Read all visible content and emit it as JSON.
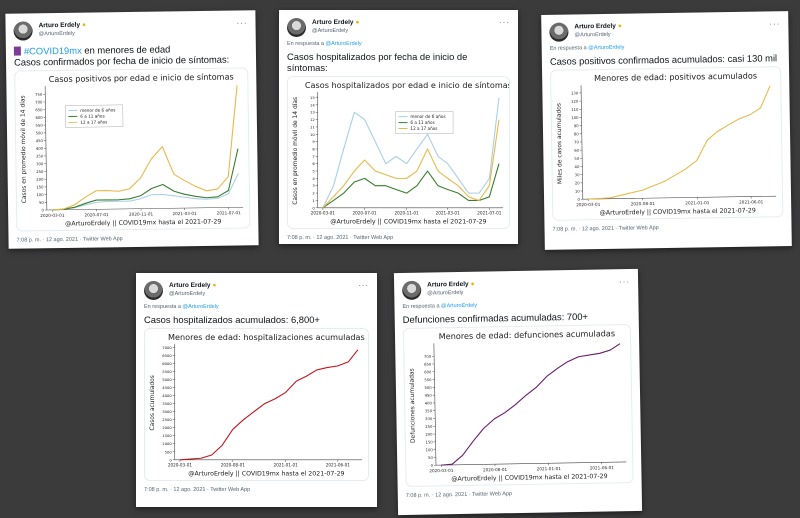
{
  "author": {
    "name": "Arturo Erdely",
    "badge_icon": "sunglasses-emoji-icon",
    "handle": "@ArturoErdely",
    "more_icon": "more-dots-icon"
  },
  "reply_prefix": "En respuesta a",
  "reply_handle": "@ArturoErdely",
  "footer": "7:08 p. m. · 12 ago. 2021 · Twitter Web App",
  "tweets": [
    {
      "text_hashtag": "#COVID19mx",
      "text_rest": " en menores de edad",
      "text_line2": "Casos confirmados por fecha de inicio de síntomas:",
      "emoji_icon": "purple-bar-emoji-icon"
    },
    {
      "text": "Casos hospitalizados por fecha de inicio de síntomas:"
    },
    {
      "text": "Casos positivos confirmados acumulados: casi 130 mil"
    },
    {
      "text": "Casos hospitalizados acumulados: 6,800+"
    },
    {
      "text": "Defunciones confirmadas acumuladas: 700+"
    }
  ],
  "chart_data": [
    {
      "type": "line",
      "title": "Casos positivos por edad e inicio de síntomas",
      "ylabel": "Casos en promedio móvil de 14 días",
      "annotation": "@ArturoErdely || COVID19mx hasta el 2021-07-29",
      "xticks": [
        "2020-03-01",
        "2020-07-01",
        "2020-11-01",
        "2021-03-01",
        "2021-07-01"
      ],
      "yticks": [
        0,
        50,
        100,
        150,
        200,
        250,
        300,
        350,
        400,
        450,
        500,
        550,
        600,
        650,
        700,
        750
      ],
      "ylim": [
        0,
        790
      ],
      "xlim": [
        "2020-02-15",
        "2021-08-10"
      ],
      "legend": "upper-left",
      "x": [
        "2020-03-01",
        "2020-04-01",
        "2020-05-01",
        "2020-06-01",
        "2020-07-01",
        "2020-08-01",
        "2020-09-01",
        "2020-10-01",
        "2020-11-01",
        "2020-12-01",
        "2021-01-01",
        "2021-02-01",
        "2021-03-01",
        "2021-04-01",
        "2021-05-01",
        "2021-06-01",
        "2021-07-01",
        "2021-07-29"
      ],
      "series": [
        {
          "name": "menor de 6 años",
          "color": "#a9cfe3",
          "values": [
            0,
            3,
            12,
            30,
            45,
            50,
            50,
            50,
            65,
            90,
            90,
            80,
            70,
            60,
            55,
            60,
            90,
            220
          ]
        },
        {
          "name": "6 a 11 años",
          "color": "#3a7d2e",
          "values": [
            0,
            3,
            15,
            40,
            60,
            60,
            60,
            65,
            85,
            130,
            155,
            110,
            90,
            75,
            65,
            70,
            110,
            380
          ]
        },
        {
          "name": "12 a 17 años",
          "color": "#e8b84a",
          "values": [
            0,
            5,
            30,
            80,
            120,
            120,
            115,
            130,
            200,
            320,
            400,
            220,
            180,
            140,
            110,
            120,
            200,
            790
          ]
        }
      ]
    },
    {
      "type": "line",
      "title": "Casos hospitalizados por edad e inicio de síntomas",
      "ylabel": "Casos en promedio móvil de 14 días",
      "annotation": "@ArturoErdely || COVID19mx hasta el 2021-07-29",
      "xticks": [
        "2020-03-01",
        "2020-07-01",
        "2020-11-01",
        "2021-03-01",
        "2021-07-01"
      ],
      "yticks": [
        0,
        1,
        2,
        3,
        4,
        5,
        6,
        7,
        8,
        9,
        10,
        11,
        12,
        13,
        14,
        15
      ],
      "ylim": [
        0,
        15.5
      ],
      "xlim": [
        "2020-02-15",
        "2021-08-10"
      ],
      "legend": "upper-center",
      "x": [
        "2020-03-01",
        "2020-04-01",
        "2020-05-01",
        "2020-06-01",
        "2020-07-01",
        "2020-08-01",
        "2020-09-01",
        "2020-10-01",
        "2020-11-01",
        "2020-12-01",
        "2021-01-01",
        "2021-02-01",
        "2021-03-01",
        "2021-04-01",
        "2021-05-01",
        "2021-06-01",
        "2021-07-01",
        "2021-07-29"
      ],
      "series": [
        {
          "name": "menor de 6 años",
          "color": "#a9cfe3",
          "values": [
            0,
            3,
            8,
            13,
            12,
            9,
            6,
            7,
            6,
            8,
            10,
            7,
            6,
            4,
            2,
            2,
            4,
            15
          ]
        },
        {
          "name": "6 a 11 años",
          "color": "#3a7d2e",
          "values": [
            0,
            1,
            2,
            3.5,
            4,
            3,
            3,
            2.5,
            2,
            3,
            5,
            3,
            2.5,
            2,
            1,
            1,
            1.5,
            6
          ]
        },
        {
          "name": "12 a 17 años",
          "color": "#e8b84a",
          "values": [
            0,
            1.5,
            3,
            5,
            6.5,
            5,
            4.5,
            4,
            4,
            5,
            8,
            5,
            4,
            3,
            1.5,
            1,
            3,
            12
          ]
        }
      ]
    },
    {
      "type": "line",
      "title": "Menores de edad: positivos acumulados",
      "ylabel": "Miles de casos acumulados",
      "annotation": "@ArturoErdely || COVID19mx hasta el 2021-07-29",
      "xticks": [
        "2020-03-01",
        "2020-08-01",
        "2021-01-01",
        "2021-06-01"
      ],
      "yticks": [
        0,
        10,
        20,
        30,
        40,
        50,
        60,
        70,
        80,
        90,
        100,
        110,
        120,
        130
      ],
      "ylim": [
        0,
        137
      ],
      "xlim": [
        "2020-02-15",
        "2021-08-10"
      ],
      "x": [
        "2020-03-01",
        "2020-05-01",
        "2020-08-01",
        "2020-10-01",
        "2020-12-01",
        "2021-01-01",
        "2021-02-01",
        "2021-03-01",
        "2021-04-01",
        "2021-05-01",
        "2021-06-01",
        "2021-07-01",
        "2021-07-29"
      ],
      "series": [
        {
          "color": "#e8b84a",
          "values": [
            0,
            1,
            10,
            20,
            35,
            45,
            70,
            80,
            88,
            95,
            100,
            108,
            135
          ]
        }
      ]
    },
    {
      "type": "line",
      "title": "Menores de edad: hospitalizaciones acumuladas",
      "ylabel": "Casos acumulados",
      "annotation": "@ArturoErdely || COVID19mx hasta el 2021-07-29",
      "xticks": [
        "2020-03-01",
        "2020-08-01",
        "2021-01-01",
        "2021-06-01"
      ],
      "yticks": [
        0,
        500,
        1000,
        1500,
        2000,
        2500,
        3000,
        3500,
        4000,
        4500,
        5000,
        5500,
        6000,
        6500,
        7000
      ],
      "ylim": [
        0,
        7100
      ],
      "xlim": [
        "2020-02-15",
        "2021-08-10"
      ],
      "x": [
        "2020-03-01",
        "2020-05-01",
        "2020-06-01",
        "2020-07-01",
        "2020-08-01",
        "2020-09-01",
        "2020-10-01",
        "2020-11-01",
        "2020-12-01",
        "2021-01-01",
        "2021-02-01",
        "2021-03-01",
        "2021-04-01",
        "2021-05-01",
        "2021-06-01",
        "2021-07-01",
        "2021-07-29"
      ],
      "series": [
        {
          "color": "#c0161c",
          "values": [
            0,
            100,
            300,
            900,
            1900,
            2500,
            3000,
            3500,
            3800,
            4200,
            4900,
            5200,
            5600,
            5750,
            5850,
            6100,
            6850
          ]
        }
      ]
    },
    {
      "type": "line",
      "title": "Menores de edad: defunciones acumuladas",
      "ylabel": "Defunciones acumuladas",
      "annotation": "@ArturoErdely || COVID19mx hasta el 2021-07-29",
      "xticks": [
        "2020-03-01",
        "2020-08-01",
        "2021-01-01",
        "2021-06-01"
      ],
      "yticks": [
        0,
        50,
        100,
        150,
        200,
        250,
        300,
        350,
        400,
        450,
        500,
        550,
        600,
        650,
        700
      ],
      "ylim": [
        0,
        770
      ],
      "xlim": [
        "2020-02-15",
        "2021-08-10"
      ],
      "x": [
        "2020-03-01",
        "2020-04-01",
        "2020-05-01",
        "2020-06-01",
        "2020-07-01",
        "2020-08-01",
        "2020-09-01",
        "2020-10-01",
        "2020-11-01",
        "2020-12-01",
        "2021-01-01",
        "2021-02-01",
        "2021-03-01",
        "2021-04-01",
        "2021-05-01",
        "2021-06-01",
        "2021-07-01",
        "2021-07-29"
      ],
      "series": [
        {
          "color": "#6a1b6e",
          "values": [
            0,
            5,
            60,
            150,
            230,
            290,
            330,
            380,
            440,
            490,
            560,
            610,
            650,
            680,
            690,
            700,
            720,
            760
          ]
        }
      ]
    }
  ]
}
